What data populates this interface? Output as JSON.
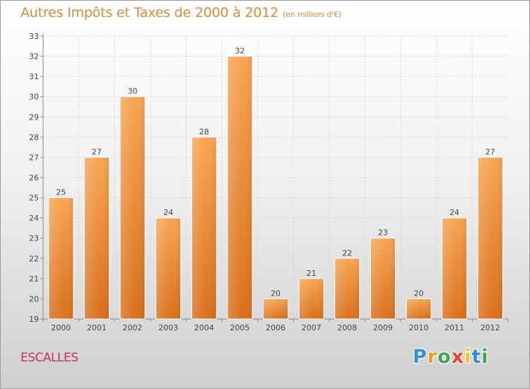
{
  "title": "Autres Impôts et Taxes de 2000 à 2012",
  "subtitle": "(en milliers d'€)",
  "place": "ESCALLES",
  "logo": {
    "text": "Proxiti",
    "letters": [
      {
        "ch": "P",
        "color": "#2f8fd4"
      },
      {
        "ch": "r",
        "color": "#f39a1f"
      },
      {
        "ch": "o",
        "color": "#3aa84b"
      },
      {
        "ch": "x",
        "color": "#e8452c"
      },
      {
        "ch": "i",
        "color": "#f3c21f"
      },
      {
        "ch": "t",
        "color": "#2f8fd4"
      },
      {
        "ch": "i",
        "color": "#3aa84b"
      }
    ]
  },
  "colors": {
    "title": "#d98a3c",
    "bar_top": "#f7a552",
    "bar_bottom": "#d9701c",
    "place": "#c0306a"
  },
  "chart_data": {
    "type": "bar",
    "categories": [
      "2000",
      "2001",
      "2002",
      "2003",
      "2004",
      "2005",
      "2006",
      "2007",
      "2008",
      "2009",
      "2010",
      "2011",
      "2012"
    ],
    "values": [
      25,
      27,
      30,
      24,
      28,
      32,
      20,
      21,
      22,
      23,
      20,
      24,
      27
    ],
    "ylim": [
      19,
      33
    ],
    "yticks": [
      19,
      20,
      21,
      22,
      23,
      24,
      25,
      26,
      27,
      28,
      29,
      30,
      31,
      32,
      33
    ],
    "grid": true
  }
}
